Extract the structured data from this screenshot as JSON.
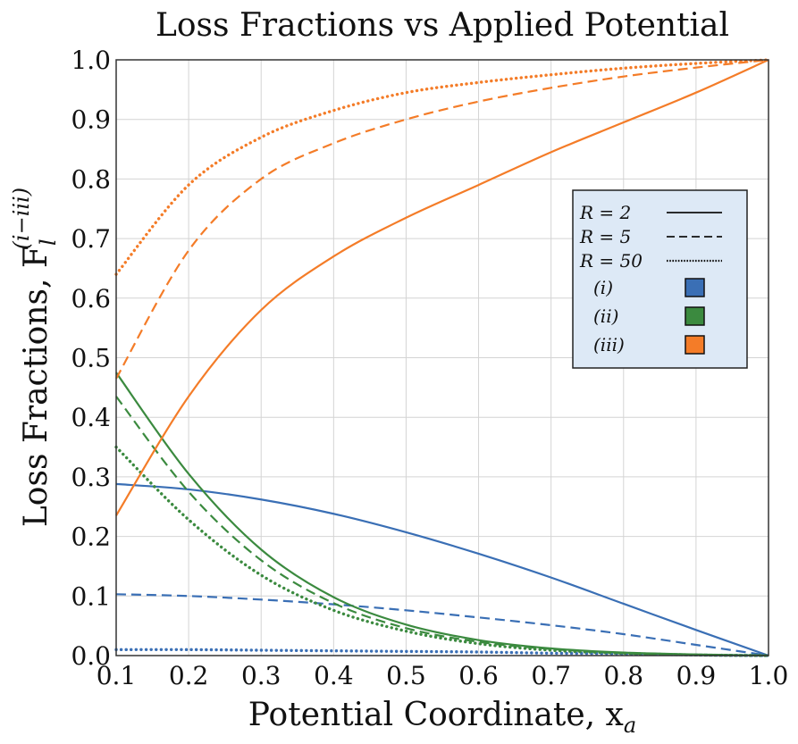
{
  "chart_data": {
    "type": "line",
    "title": "Loss Fractions vs Applied Potential",
    "xlabel": "Potential Coordinate, x",
    "xlabel_sub": "a",
    "ylabel": "Loss Fractions, F",
    "ylabel_sub": "l",
    "ylabel_sup": "(i−iii)",
    "xlim": [
      0.1,
      1.0
    ],
    "ylim": [
      0.0,
      1.0
    ],
    "xticks": [
      "0.1",
      "0.2",
      "0.3",
      "0.4",
      "0.5",
      "0.6",
      "0.7",
      "0.8",
      "0.9",
      "1.0"
    ],
    "yticks": [
      "0.0",
      "0.1",
      "0.2",
      "0.3",
      "0.4",
      "0.5",
      "0.6",
      "0.7",
      "0.8",
      "0.9",
      "1.0"
    ],
    "grid": true,
    "x": [
      0.1,
      0.2,
      0.3,
      0.4,
      0.5,
      0.6,
      0.7,
      0.8,
      0.9,
      1.0
    ],
    "legend": {
      "placement": "upper-right",
      "styles": [
        {
          "label": "R = 2",
          "dash": "solid"
        },
        {
          "label": "R = 5",
          "dash": "dashed"
        },
        {
          "label": "R = 50",
          "dash": "dotted"
        }
      ],
      "components": [
        {
          "label": "(i)",
          "color": "#3a6fb5"
        },
        {
          "label": "(ii)",
          "color": "#3b8a3f"
        },
        {
          "label": "(iii)",
          "color": "#f47c28"
        }
      ]
    },
    "series": [
      {
        "name": "(i) R=2",
        "component": "(i)",
        "style": "solid",
        "color": "#3a6fb5",
        "values": [
          0.288,
          0.279,
          0.262,
          0.238,
          0.207,
          0.171,
          0.131,
          0.087,
          0.043,
          0.0
        ]
      },
      {
        "name": "(i) R=5",
        "component": "(i)",
        "style": "dashed",
        "color": "#3a6fb5",
        "values": [
          0.103,
          0.1,
          0.094,
          0.086,
          0.076,
          0.064,
          0.051,
          0.036,
          0.018,
          0.0
        ]
      },
      {
        "name": "(i) R=50",
        "component": "(i)",
        "style": "dotted",
        "color": "#3a6fb5",
        "values": [
          0.01,
          0.01,
          0.009,
          0.008,
          0.007,
          0.006,
          0.004,
          0.003,
          0.001,
          0.0
        ]
      },
      {
        "name": "(ii) R=2",
        "component": "(ii)",
        "style": "solid",
        "color": "#3b8a3f",
        "values": [
          0.475,
          0.305,
          0.178,
          0.098,
          0.052,
          0.026,
          0.012,
          0.005,
          0.002,
          0.0
        ]
      },
      {
        "name": "(ii) R=5",
        "component": "(ii)",
        "style": "dashed",
        "color": "#3b8a3f",
        "values": [
          0.435,
          0.275,
          0.16,
          0.088,
          0.046,
          0.023,
          0.011,
          0.004,
          0.001,
          0.0
        ]
      },
      {
        "name": "(ii) R=50",
        "component": "(ii)",
        "style": "dotted",
        "color": "#3b8a3f",
        "values": [
          0.35,
          0.228,
          0.135,
          0.076,
          0.041,
          0.02,
          0.009,
          0.004,
          0.001,
          0.0
        ]
      },
      {
        "name": "(iii) R=2",
        "component": "(iii)",
        "style": "solid",
        "color": "#f47c28",
        "values": [
          0.235,
          0.435,
          0.58,
          0.67,
          0.735,
          0.79,
          0.845,
          0.895,
          0.945,
          1.0
        ]
      },
      {
        "name": "(iii) R=5",
        "component": "(iii)",
        "style": "dashed",
        "color": "#f47c28",
        "values": [
          0.465,
          0.68,
          0.8,
          0.86,
          0.9,
          0.93,
          0.953,
          0.972,
          0.987,
          1.0
        ]
      },
      {
        "name": "(iii) R=50",
        "component": "(iii)",
        "style": "dotted",
        "color": "#f47c28",
        "values": [
          0.64,
          0.79,
          0.87,
          0.915,
          0.945,
          0.962,
          0.975,
          0.986,
          0.994,
          1.0
        ]
      }
    ]
  }
}
